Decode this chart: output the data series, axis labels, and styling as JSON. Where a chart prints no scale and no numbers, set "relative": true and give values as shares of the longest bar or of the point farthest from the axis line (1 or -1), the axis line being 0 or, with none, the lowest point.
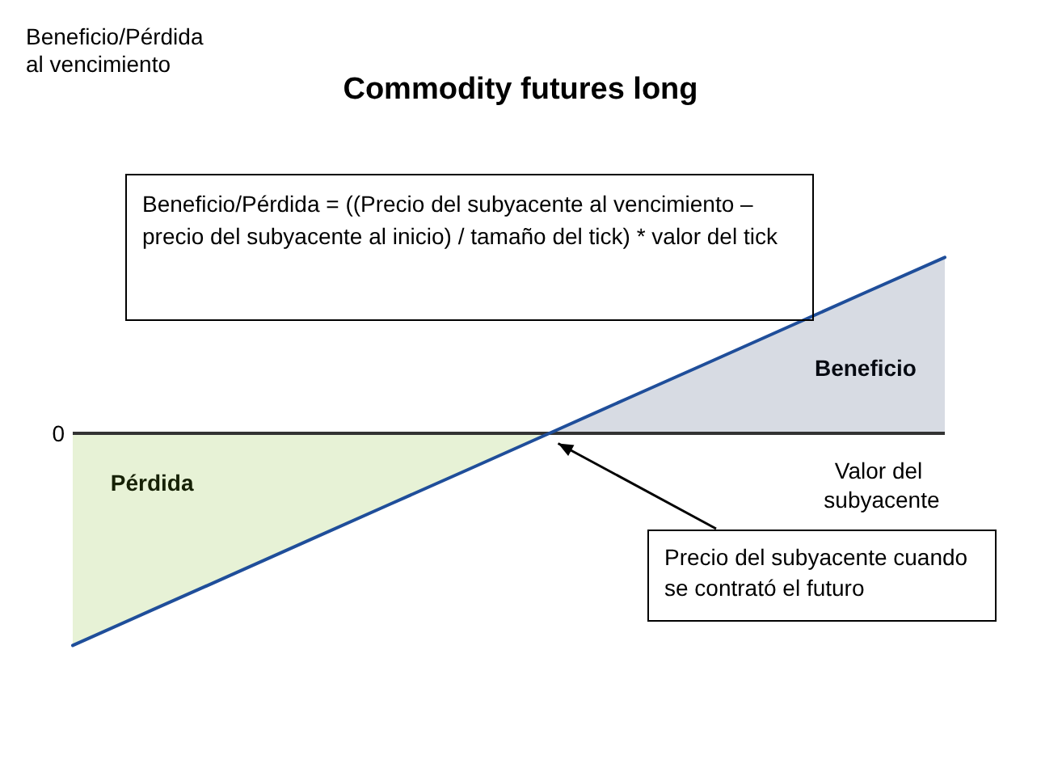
{
  "chart_data": {
    "type": "line",
    "title": "Commodity futures long",
    "xlabel": "Valor del subyacente",
    "relative": true,
    "marker": "none",
    "categories": [
      null,
      null,
      null,
      null,
      null,
      null,
      null,
      null,
      null,
      null,
      null,
      null
    ],
    "series": [
      {
        "name": "Pérdida",
        "type": "area",
        "color": "#7ab51d",
        "values": [
          -1,
          -0.833,
          -0.667,
          -0.5,
          -0.333,
          -0.167,
          0,
          null,
          null,
          null,
          null,
          null
        ]
      },
      {
        "name": "Beneficio",
        "type": "area",
        "color": "#1f3864",
        "values": [
          null,
          null,
          null,
          null,
          null,
          null,
          0,
          0.167,
          0.333,
          0.5,
          0.667,
          0.833
        ]
      },
      {
        "color": "#1f4e9a",
        "values": [
          -1,
          -0.833,
          -0.667,
          -0.5,
          -0.333,
          -0.167,
          0,
          0.167,
          0.333,
          0.5,
          0.667,
          0.833
        ]
      }
    ],
    "ref_lines": [
      {
        "axis": "y",
        "value": 0,
        "label": "0"
      }
    ],
    "annotations": [
      "Beneficio/Pérdida al vencimiento",
      "Beneficio/Pérdida = ((Precio del subyacente al vencimiento – precio del subyacente al inicio) / tamaño del tick) * valor del tick",
      "Precio del subyacente cuando se contrató el futuro"
    ]
  }
}
